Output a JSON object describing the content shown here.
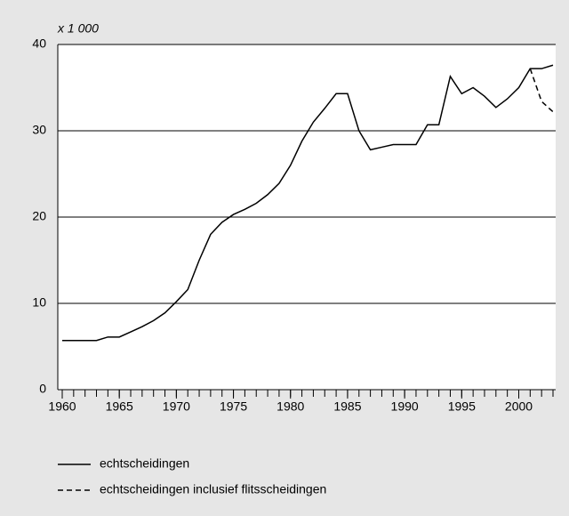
{
  "chart_data": {
    "type": "line",
    "y_unit_label": "x 1 000",
    "x": [
      1960,
      1961,
      1962,
      1963,
      1964,
      1965,
      1966,
      1967,
      1968,
      1969,
      1970,
      1971,
      1972,
      1973,
      1974,
      1975,
      1976,
      1977,
      1978,
      1979,
      1980,
      1981,
      1982,
      1983,
      1984,
      1985,
      1986,
      1987,
      1988,
      1989,
      1990,
      1991,
      1992,
      1993,
      1994,
      1995,
      1996,
      1997,
      1998,
      1999,
      2000,
      2001,
      2002,
      2003
    ],
    "series": [
      {
        "name": "echtscheidingen",
        "color": "#000000",
        "dash": "solid",
        "values": [
          5.7,
          5.7,
          5.7,
          5.7,
          6.1,
          6.1,
          6.7,
          7.3,
          8.0,
          8.9,
          10.2,
          11.6,
          15.0,
          18.0,
          19.4,
          20.3,
          20.9,
          21.6,
          22.6,
          23.9,
          26.0,
          28.8,
          31.0,
          32.6,
          34.3,
          34.3,
          30.0,
          27.8,
          28.1,
          28.4,
          28.4,
          28.4,
          30.7,
          30.7,
          36.3,
          34.3,
          35.0,
          34.0,
          32.7,
          33.7,
          35.0,
          37.2,
          37.2,
          37.6
        ]
      },
      {
        "name": "echtscheidingen inclusief flitsscheidingen",
        "color": "#000000",
        "dash": "dashed",
        "values": [
          null,
          null,
          null,
          null,
          null,
          null,
          null,
          null,
          null,
          null,
          null,
          null,
          null,
          null,
          null,
          null,
          null,
          null,
          null,
          null,
          null,
          null,
          null,
          null,
          null,
          null,
          null,
          null,
          null,
          null,
          null,
          null,
          null,
          null,
          null,
          null,
          null,
          null,
          null,
          null,
          null,
          37.2,
          33.4,
          32.2
        ]
      }
    ],
    "xlim": [
      1960,
      2003
    ],
    "xticks": [
      1960,
      1965,
      1970,
      1975,
      1980,
      1985,
      1990,
      1995,
      2000
    ],
    "xminorticks": [
      1960,
      1961,
      1962,
      1963,
      1964,
      1965,
      1966,
      1967,
      1968,
      1969,
      1970,
      1971,
      1972,
      1973,
      1974,
      1975,
      1976,
      1977,
      1978,
      1979,
      1980,
      1981,
      1982,
      1983,
      1984,
      1985,
      1986,
      1987,
      1988,
      1989,
      1990,
      1991,
      1992,
      1993,
      1994,
      1995,
      1996,
      1997,
      1998,
      1999,
      2000,
      2001,
      2002,
      2003
    ],
    "ylim": [
      0,
      40
    ],
    "yticks": [
      0,
      10,
      20,
      30,
      40
    ],
    "grid": true,
    "legend": "bottom"
  }
}
